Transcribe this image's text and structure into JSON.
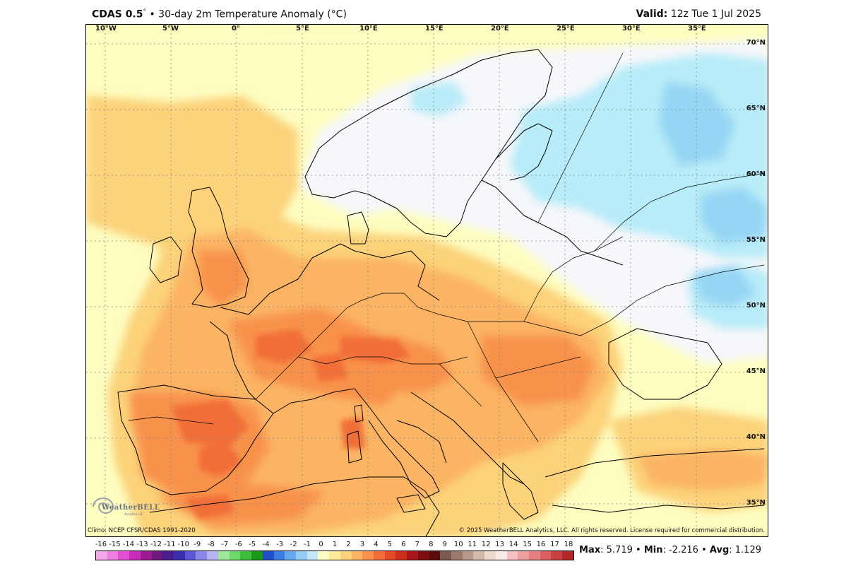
{
  "header": {
    "model": "CDAS 0.5",
    "deg": "°",
    "bullet": "•",
    "description": "30-day 2m Temperature Anomaly (°C)",
    "valid_label": "Valid:",
    "valid_value": "12z Tue 1 Jul 2025"
  },
  "axes": {
    "longitudes": [
      "10°W",
      "5°W",
      "0°",
      "5°E",
      "10°E",
      "15°E",
      "20°E",
      "25°E",
      "30°E",
      "35°E"
    ],
    "latitudes": [
      "70°N",
      "65°N",
      "60°N",
      "55°N",
      "50°N",
      "45°N",
      "40°N",
      "35°N"
    ]
  },
  "footer": {
    "climo": "Climo: NCEP CFSR/CDAS 1991-2020",
    "copyright": "© 2025 WeatherBELL Analytics, LLC. All rights reserved. License required for commercial distribution."
  },
  "logo": {
    "text": "WeatherBELL",
    "sub": "Analytics LLC"
  },
  "colorbar": {
    "labels": [
      "-16",
      "-15",
      "-14",
      "-13",
      "-12",
      "-11",
      "-10",
      "-9",
      "-8",
      "-7",
      "-6",
      "-5",
      "-4",
      "-3",
      "-2",
      "-1",
      "0",
      "1",
      "2",
      "3",
      "4",
      "5",
      "6",
      "7",
      "8",
      "9",
      "10",
      "11",
      "12",
      "13",
      "14",
      "15",
      "16",
      "17",
      "18"
    ],
    "colors": [
      "#f4a8e8",
      "#ee7fe0",
      "#e44fd4",
      "#c72bb8",
      "#9b1b93",
      "#6f1a7e",
      "#4b1d8c",
      "#3a2eae",
      "#5a58d6",
      "#8a89e8",
      "#b7b4f2",
      "#9fe89a",
      "#6fd86a",
      "#3cc03a",
      "#1a9a1a",
      "#2050c8",
      "#3c7ee0",
      "#64a8ee",
      "#94ccf6",
      "#c4e6fa",
      "#fdfdc8",
      "#fdeb9a",
      "#fcd27a",
      "#fbb463",
      "#f8924c",
      "#f16e38",
      "#e54a28",
      "#cc2e1e",
      "#a8181a",
      "#7d0d10",
      "#5a0a0a",
      "#7a5a50",
      "#9a7a6a",
      "#b8988a",
      "#d4b8aa",
      "#ecd8cc",
      "#f8ece6",
      "#f4c0c0",
      "#eea0a0",
      "#e48080",
      "#d86060",
      "#c84040",
      "#b02828"
    ]
  },
  "stats": {
    "max_label": "Max",
    "max_value": "5.719",
    "min_label": "Min",
    "min_value": "-2.216",
    "avg_label": "Avg",
    "avg_value": "1.129",
    "sep": "•"
  }
}
